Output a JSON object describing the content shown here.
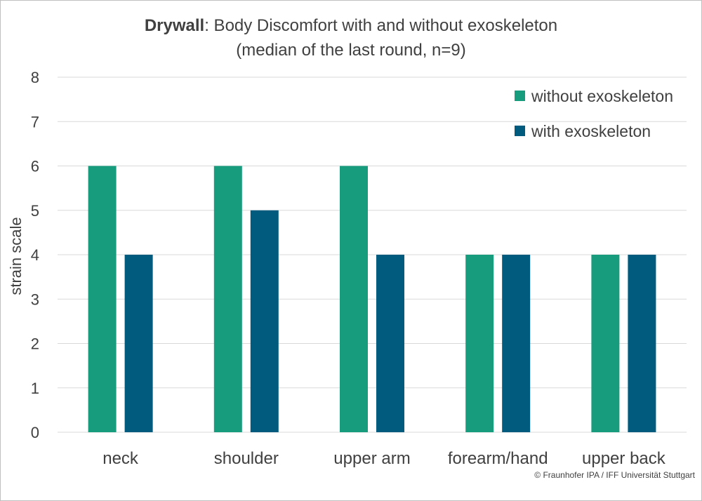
{
  "chart_data": {
    "type": "bar",
    "title_bold": "Drywall",
    "title_rest": ": Body Discomfort with and without exoskeleton",
    "subtitle": "(median of the last round, n=9)",
    "categories": [
      "neck",
      "shoulder",
      "upper arm",
      "forearm/hand",
      "upper back"
    ],
    "series": [
      {
        "name": "without exoskeleton",
        "color": "#179c7d",
        "values": [
          6,
          6,
          6,
          4,
          4
        ]
      },
      {
        "name": "with exoskeleton",
        "color": "#005b7f",
        "values": [
          4,
          5,
          4,
          4,
          4
        ]
      }
    ],
    "ylabel": "strain scale",
    "ylim": [
      0,
      8
    ],
    "yticks": [
      "0",
      "1",
      "2",
      "3",
      "4",
      "5",
      "6",
      "7",
      "8"
    ],
    "grid": true,
    "legend_position": "top-right",
    "gridline_color": "#d9d9d9"
  },
  "footer": {
    "copyright": "© Fraunhofer IPA / IFF Universität Stuttgart"
  }
}
